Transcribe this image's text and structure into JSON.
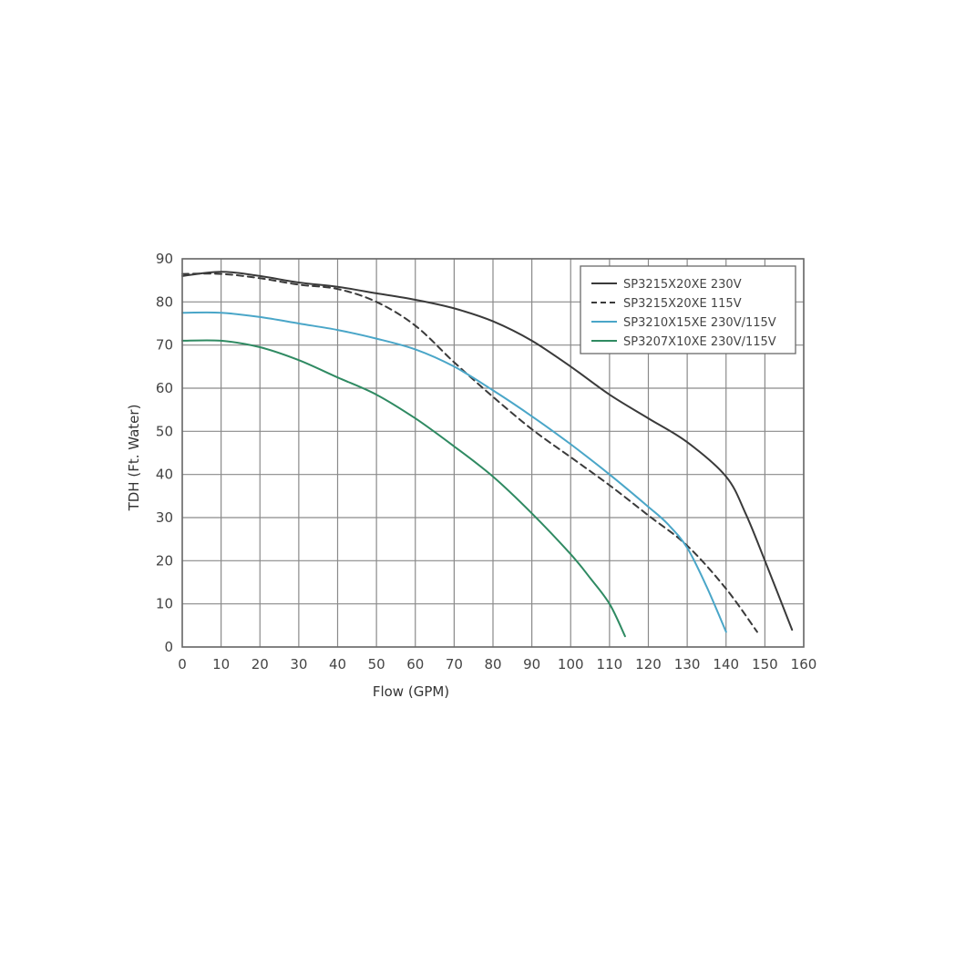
{
  "chart_data": {
    "type": "line",
    "title": "",
    "xlabel": "Flow (GPM)",
    "ylabel": "TDH (Ft. Water)",
    "xlim": [
      0,
      160
    ],
    "ylim": [
      0,
      90
    ],
    "x_ticks": [
      0,
      10,
      20,
      30,
      40,
      50,
      60,
      70,
      80,
      90,
      100,
      110,
      120,
      130,
      140,
      150,
      160
    ],
    "y_ticks": [
      0,
      10,
      20,
      30,
      40,
      50,
      60,
      70,
      80,
      90
    ],
    "grid": true,
    "legend_position": "top-right",
    "series": [
      {
        "name": "SP3215X20XE 230V",
        "color": "#3a3a3a",
        "dash": "solid",
        "x": [
          0,
          10,
          20,
          30,
          40,
          50,
          60,
          70,
          80,
          90,
          100,
          110,
          120,
          130,
          140,
          145,
          150,
          157
        ],
        "y": [
          86,
          87,
          86,
          84.5,
          83.5,
          82,
          80.5,
          78.5,
          75.5,
          71,
          65,
          58.5,
          53,
          47.5,
          39.5,
          31,
          20,
          4
        ]
      },
      {
        "name": "SP3215X20XE 115V",
        "color": "#3a3a3a",
        "dash": "dashed",
        "x": [
          0,
          10,
          20,
          30,
          40,
          50,
          60,
          70,
          80,
          90,
          100,
          110,
          120,
          130,
          140,
          148
        ],
        "y": [
          86.5,
          86.5,
          85.5,
          84,
          83,
          80,
          74.5,
          66,
          58,
          50.5,
          44,
          37.5,
          30.5,
          23.5,
          13.5,
          3.5
        ]
      },
      {
        "name": "SP3210X15XE 230V/115V",
        "color": "#4aa6c8",
        "dash": "solid",
        "x": [
          0,
          10,
          20,
          30,
          40,
          50,
          60,
          70,
          80,
          90,
          100,
          110,
          120,
          125,
          130,
          135,
          140
        ],
        "y": [
          77.5,
          77.5,
          76.5,
          75,
          73.5,
          71.5,
          69,
          65,
          59.5,
          53.5,
          47,
          40,
          32.5,
          28.5,
          23,
          14,
          3.5
        ]
      },
      {
        "name": "SP3207X10XE 230V/115V",
        "color": "#2f8a62",
        "dash": "solid",
        "x": [
          0,
          10,
          20,
          30,
          40,
          50,
          60,
          70,
          80,
          90,
          100,
          105,
          110,
          114
        ],
        "y": [
          71,
          71,
          69.5,
          66.5,
          62.5,
          58.5,
          53,
          46.5,
          39.5,
          31,
          21.5,
          16,
          10,
          2.5
        ]
      }
    ]
  }
}
